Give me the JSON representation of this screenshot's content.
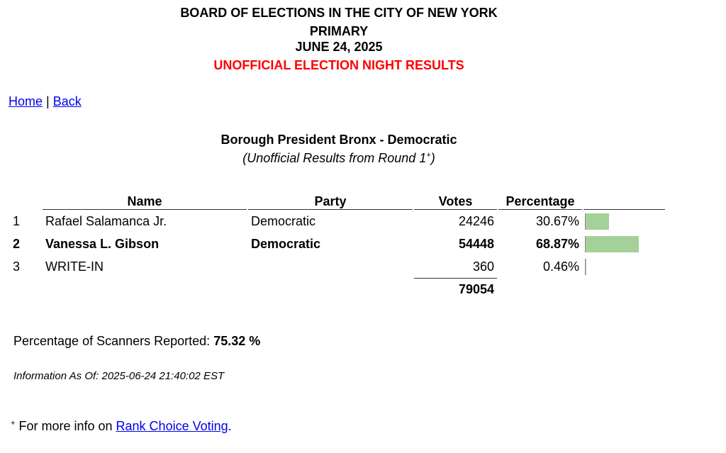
{
  "header": {
    "org": "BOARD OF ELECTIONS IN THE CITY OF NEW YORK",
    "election": "PRIMARY",
    "date": "JUNE 24, 2025",
    "status": "UNOFFICIAL ELECTION NIGHT RESULTS"
  },
  "nav": {
    "home": "Home",
    "separator": "|",
    "back": "Back"
  },
  "contest": {
    "title": "Borough President Bronx - Democratic",
    "subtitle": "(Unofficial Results from Round 1",
    "marker": "+",
    "subtitle_end": ")"
  },
  "table": {
    "columns": [
      "Name",
      "Party",
      "Votes",
      "Percentage"
    ],
    "rows": [
      {
        "rank": "1",
        "name": "Rafael Salamanca Jr.",
        "party": "Democratic",
        "votes": "24246",
        "percent": 30.67,
        "percent_label": "30.67%"
      },
      {
        "rank": "2",
        "name": "Vanessa L. Gibson",
        "party": "Democratic",
        "votes": "54448",
        "percent": 68.87,
        "percent_label": "68.87%",
        "highlight": true
      },
      {
        "rank": "3",
        "name": "WRITE-IN",
        "votes": "360",
        "percent": 0.46,
        "percent_label": "0.46%"
      }
    ],
    "total": "79054",
    "bar_color": "#a5d09a"
  },
  "scanners": {
    "label": "Percentage of Scanners Reported:",
    "value": "75.32 %"
  },
  "info": "Information As Of: 2025-06-24 21:40:02 EST",
  "footnote": {
    "marker": "+",
    "text": "For more info on",
    "link": "Rank Choice Voting",
    "end": "."
  }
}
